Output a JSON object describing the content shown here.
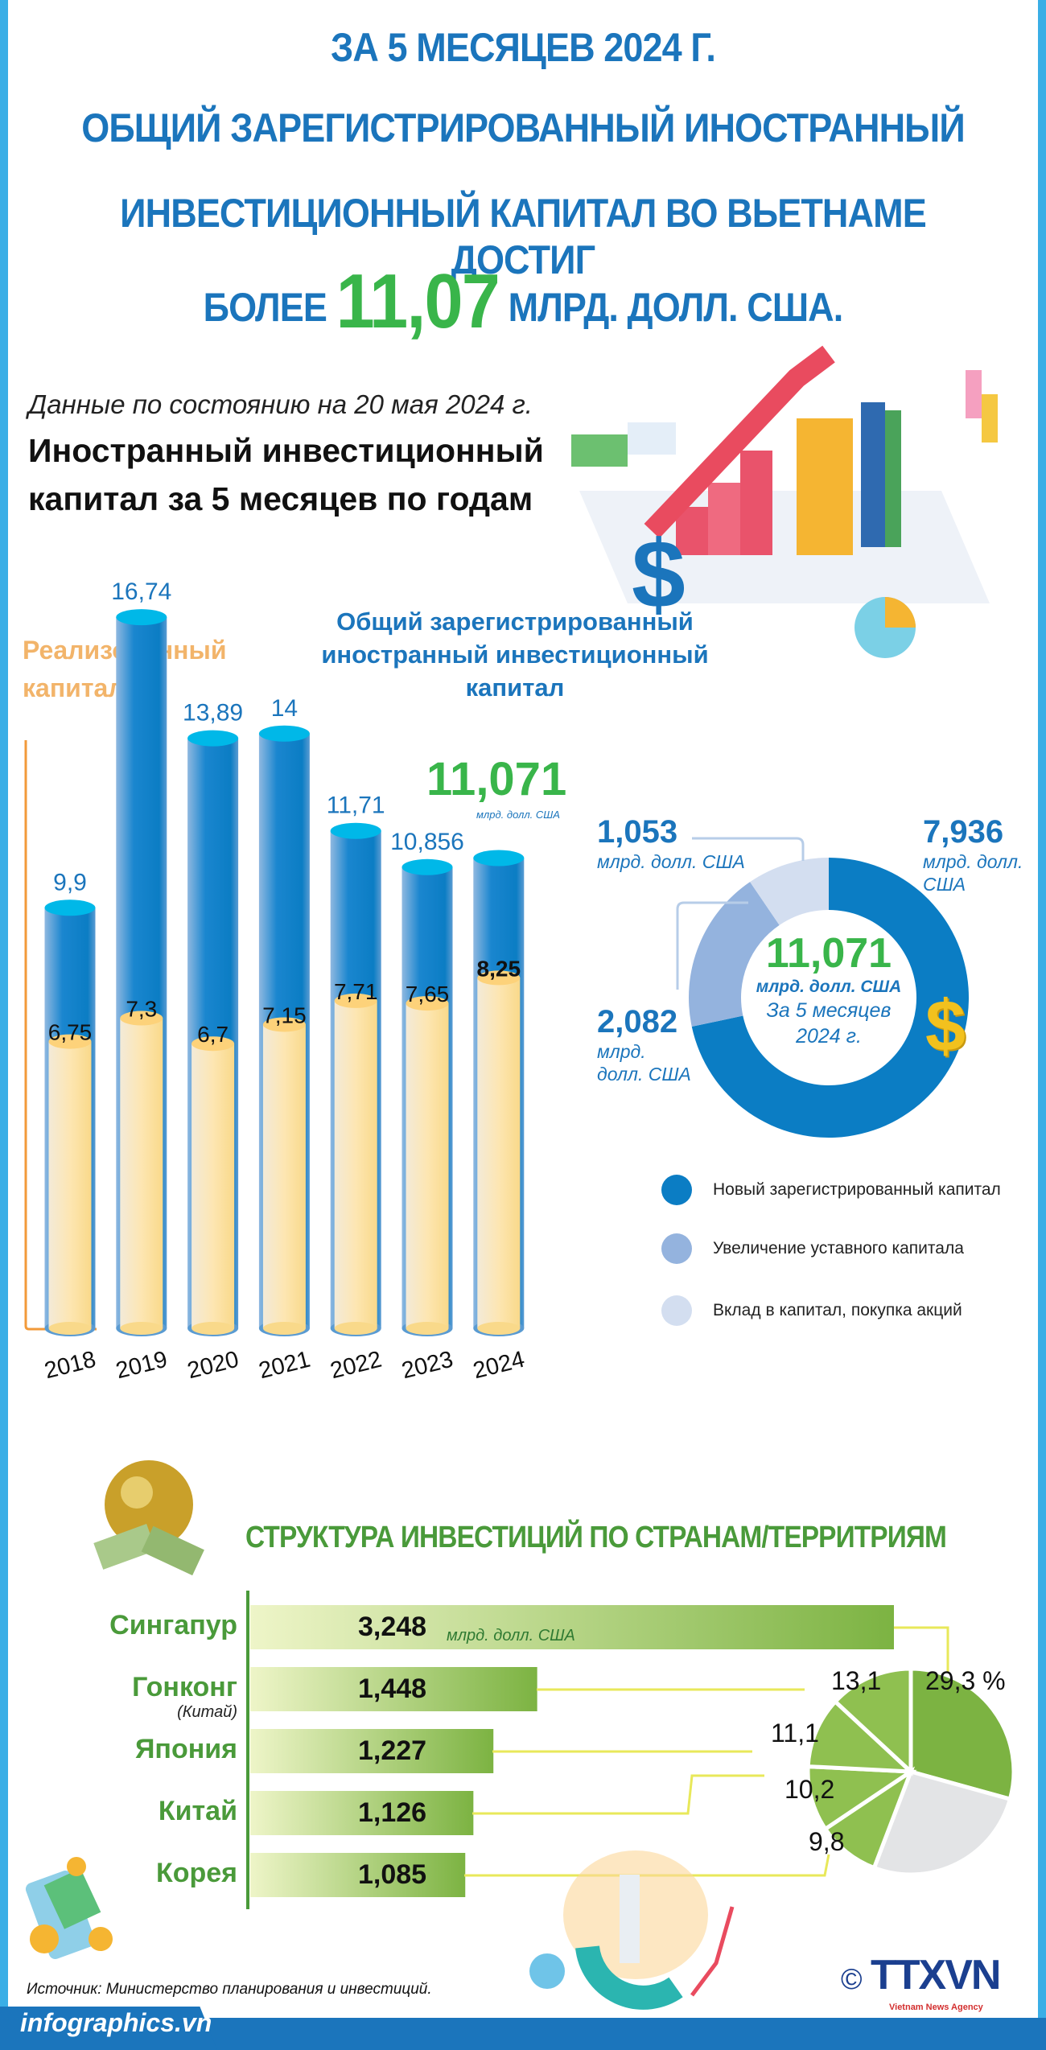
{
  "header": {
    "line1": "ЗА 5 МЕСЯЦЕВ 2024 Г.",
    "line2": "ОБЩИЙ ЗАРЕГИСТРИРОВАННЫЙ ИНОСТРАННЫЙ",
    "line3": "ИНВЕСТИЦИОННЫЙ КАПИТАЛ ВО ВЬЕТНАМЕ ДОСТИГ",
    "line4_pre": "БОЛЕЕ",
    "line4_value": "11,07",
    "line4_post": "МЛРД. ДОЛЛ. США."
  },
  "as_of": "Данные по состоянию на 20 мая 2024 г.",
  "section1_title_line1": "Иностранный инвестиционный",
  "section1_title_line2": "капитал за 5 месяцев по годам",
  "colors": {
    "title": "#1b75bc",
    "accent_green": "#39b54a",
    "registered": "#1584d0",
    "realized": "#fde3a7",
    "bars2": "#7cb342"
  },
  "chart_data": [
    {
      "type": "bar",
      "categories": [
        "2018",
        "2019",
        "2020",
        "2021",
        "2022",
        "2023",
        "2024"
      ],
      "series": [
        {
          "name": "Общий зарегистрированный иностранный инвестиционный капитал",
          "values": [
            9.9,
            16.74,
            13.89,
            14,
            11.71,
            10.856,
            11.071
          ],
          "labels": [
            "9,9",
            "16,74",
            "13,89",
            "14",
            "11,71",
            "10,856",
            "11,071"
          ]
        },
        {
          "name": "Реализованный капитал",
          "values": [
            6.75,
            7.3,
            6.7,
            7.15,
            7.71,
            7.65,
            8.25
          ],
          "labels": [
            "6,75",
            "7,3",
            "6,7",
            "7,15",
            "7,71",
            "7,65",
            "8,25"
          ]
        }
      ],
      "realized_label_line1": "Реализованный",
      "realized_label_line2": "капитал",
      "total_label": "Общий зарегистрированный иностранный инвестиционный капитал",
      "highlight_value": "11,071",
      "highlight_unit": "млрд. долл. США"
    },
    {
      "type": "pie",
      "donut": true,
      "center_value": "11,071",
      "center_unit": "млрд. долл. США",
      "center_period_line1": "За 5 месяцев",
      "center_period_line2": "2024 г.",
      "slices": [
        {
          "name": "Новый зарегистрированный капитал",
          "value": 7.936,
          "label": "7,936",
          "unit_line1": "млрд. долл.",
          "unit_line2": "США",
          "color": "#0b7dc4"
        },
        {
          "name": "Увеличение уставного капитала",
          "value": 2.082,
          "label": "2,082",
          "unit_line1": "млрд.",
          "unit_line2": "долл. США",
          "color": "#94b3de"
        },
        {
          "name": "Вклад в капитал, покупка акций",
          "value": 1.053,
          "label": "1,053",
          "unit_line1": "млрд. долл. США",
          "unit_line2": "",
          "color": "#d3def0"
        }
      ],
      "legend_placement": "bottom"
    },
    {
      "type": "bar",
      "orientation": "horizontal",
      "title": "СТРУКТУРА ИНВЕСТИЦИЙ ПО СТРАНАМ/ТЕРРИТРИЯМ",
      "categories": [
        "Сингапур",
        "Гонконг",
        "Япония",
        "Китай",
        "Корея"
      ],
      "category_notes": [
        "",
        "(Китай)",
        "",
        "",
        ""
      ],
      "values": [
        3.248,
        1.448,
        1.227,
        1.126,
        1.085
      ],
      "labels": [
        "3,248",
        "1,448",
        "1,227",
        "1,126",
        "1,085"
      ],
      "unit": "млрд. долл. США"
    },
    {
      "type": "pie",
      "values": [
        29.3,
        26.5,
        9.8,
        10.2,
        11.1,
        13.1
      ],
      "labels": [
        "29,3 %",
        "",
        "9,8",
        "10,2",
        "11,1",
        "13,1"
      ],
      "colors": [
        "#7cb342",
        "#e3e4e6",
        "#8fc050",
        "#8fc050",
        "#8fc050",
        "#8fc050"
      ]
    }
  ],
  "source": "Источник: Министерство планирования и инвестиций.",
  "footer": {
    "site": "infographics.vn",
    "logo": "TTXVN",
    "logo_sub": "Vietnam News Agency",
    "copyright": "©"
  }
}
